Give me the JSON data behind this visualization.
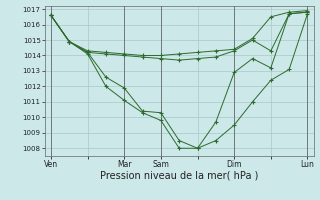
{
  "bg_color": "#cce8e8",
  "grid_color": "#a8c8c8",
  "line_color": "#2d6a2d",
  "marker_color": "#2d6a2d",
  "xlabel": "Pression niveau de la mer( hPa )",
  "xlabel_fontsize": 7,
  "ylim": [
    1007.5,
    1017.2
  ],
  "yticks": [
    1008,
    1009,
    1010,
    1011,
    1012,
    1013,
    1014,
    1015,
    1016,
    1017
  ],
  "xtick_labels": [
    "Ven",
    "",
    "Mar",
    "Sam",
    "",
    "Dim",
    "",
    "Lun"
  ],
  "xtick_positions": [
    0,
    6,
    12,
    18,
    24,
    30,
    36,
    42
  ],
  "vlines": [
    0,
    12,
    18,
    30,
    42
  ],
  "series1_x": [
    0,
    3,
    6,
    9,
    12,
    15,
    18,
    21,
    24,
    27,
    30,
    33,
    36,
    39,
    42
  ],
  "series1_y": [
    1016.6,
    1014.9,
    1014.2,
    1014.1,
    1014.0,
    1013.9,
    1013.8,
    1013.7,
    1013.8,
    1013.9,
    1014.3,
    1015.0,
    1014.3,
    1016.7,
    1016.8
  ],
  "series2_x": [
    0,
    3,
    6,
    9,
    12,
    15,
    18,
    21,
    24,
    27,
    30,
    33,
    36,
    39,
    42
  ],
  "series2_y": [
    1016.6,
    1014.9,
    1014.3,
    1014.2,
    1014.1,
    1014.0,
    1014.0,
    1014.1,
    1014.2,
    1014.3,
    1014.4,
    1015.1,
    1016.5,
    1016.8,
    1016.9
  ],
  "series3_x": [
    0,
    3,
    6,
    9,
    12,
    15,
    18,
    21,
    24,
    27,
    30,
    33,
    36,
    39,
    42
  ],
  "series3_y": [
    1016.6,
    1014.9,
    1014.1,
    1012.0,
    1011.1,
    1010.3,
    1009.8,
    1008.0,
    1008.0,
    1008.5,
    1009.5,
    1011.0,
    1012.4,
    1013.1,
    1016.7
  ],
  "series4_x": [
    0,
    3,
    6,
    9,
    12,
    15,
    18,
    21,
    24,
    27,
    30,
    33,
    36,
    39,
    42
  ],
  "series4_y": [
    1016.6,
    1014.9,
    1014.2,
    1012.6,
    1011.9,
    1010.4,
    1010.3,
    1008.5,
    1008.0,
    1009.7,
    1012.9,
    1013.8,
    1013.2,
    1016.7,
    1016.8
  ]
}
